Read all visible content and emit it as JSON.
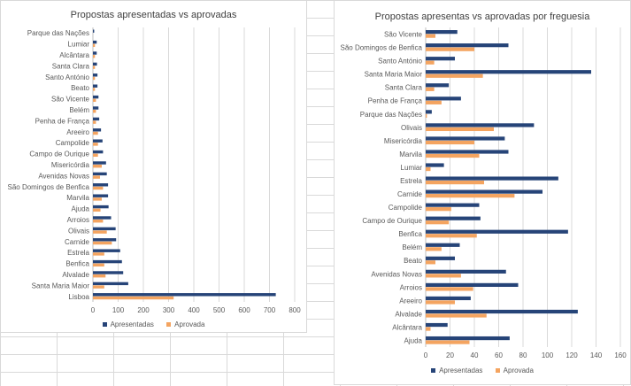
{
  "colors": {
    "apresentadas": "#264478",
    "aprovada": "#F4A460",
    "grid": "#d9d9d9",
    "axis": "#bfbfbf"
  },
  "legend": {
    "apresentadas": "Apresentadas",
    "aprovada": "Aprovada"
  },
  "chart_data": [
    {
      "type": "bar",
      "orientation": "horizontal",
      "title": "Propostas apresentadas vs aprovadas",
      "categories": [
        "Parque das Nações",
        "Lumiar",
        "Alcântara",
        "Santa Clara",
        "Santo António",
        "Beato",
        "São Vicente",
        "Belém",
        "Penha de França",
        "Areeiro",
        "Campolide",
        "Campo de Ourique",
        "Misericórdia",
        "Avenidas Novas",
        "São Domingos de Benfica",
        "Marvila",
        "Ajuda",
        "Arroios",
        "Olivais",
        "Carnide",
        "Estrela",
        "Benfica",
        "Alvalade",
        "Santa Maria Maior",
        "Lisboa"
      ],
      "series": [
        {
          "name": "Apresentadas",
          "values": [
            5,
            15,
            15,
            16,
            18,
            18,
            22,
            22,
            25,
            32,
            38,
            40,
            52,
            55,
            60,
            60,
            62,
            72,
            90,
            92,
            108,
            115,
            120,
            140,
            725
          ]
        },
        {
          "name": "Aprovada",
          "values": [
            0,
            8,
            8,
            8,
            8,
            8,
            12,
            12,
            12,
            20,
            20,
            20,
            35,
            28,
            40,
            35,
            30,
            40,
            55,
            75,
            45,
            45,
            50,
            45,
            320
          ]
        }
      ],
      "xlim": [
        0,
        800
      ],
      "xticks": [
        0,
        100,
        200,
        300,
        400,
        500,
        600,
        700,
        800
      ],
      "grid": true,
      "legend_position": "bottom"
    },
    {
      "type": "bar",
      "orientation": "horizontal",
      "title": "Propostas apresentas vs aprovadas por freguesia",
      "categories": [
        "São Vicente",
        "São Domingos de Benfica",
        "Santo António",
        "Santa Maria Maior",
        "Santa Clara",
        "Penha de França",
        "Parque das Nações",
        "Olivais",
        "Misericórdia",
        "Marvila",
        "Lumiar",
        "Estrela",
        "Carnide",
        "Campolide",
        "Campo de Ourique",
        "Benfica",
        "Belém",
        "Beato",
        "Avenidas Novas",
        "Arroios",
        "Areeiro",
        "Alvalade",
        "Alcântara",
        "Ajuda"
      ],
      "series": [
        {
          "name": "Apresentadas",
          "values": [
            26,
            68,
            24,
            136,
            19,
            29,
            5,
            89,
            65,
            68,
            15,
            109,
            96,
            44,
            45,
            117,
            28,
            24,
            66,
            76,
            37,
            125,
            18,
            69
          ]
        },
        {
          "name": "Aprovada",
          "values": [
            8,
            40,
            7,
            47,
            7,
            13,
            1,
            56,
            40,
            44,
            4,
            48,
            73,
            21,
            19,
            42,
            13,
            8,
            29,
            39,
            24,
            50,
            4,
            36
          ]
        }
      ],
      "xlim": [
        0,
        160
      ],
      "xticks": [
        0,
        20,
        40,
        60,
        80,
        100,
        120,
        140,
        160
      ],
      "grid": true,
      "legend_position": "bottom"
    }
  ]
}
